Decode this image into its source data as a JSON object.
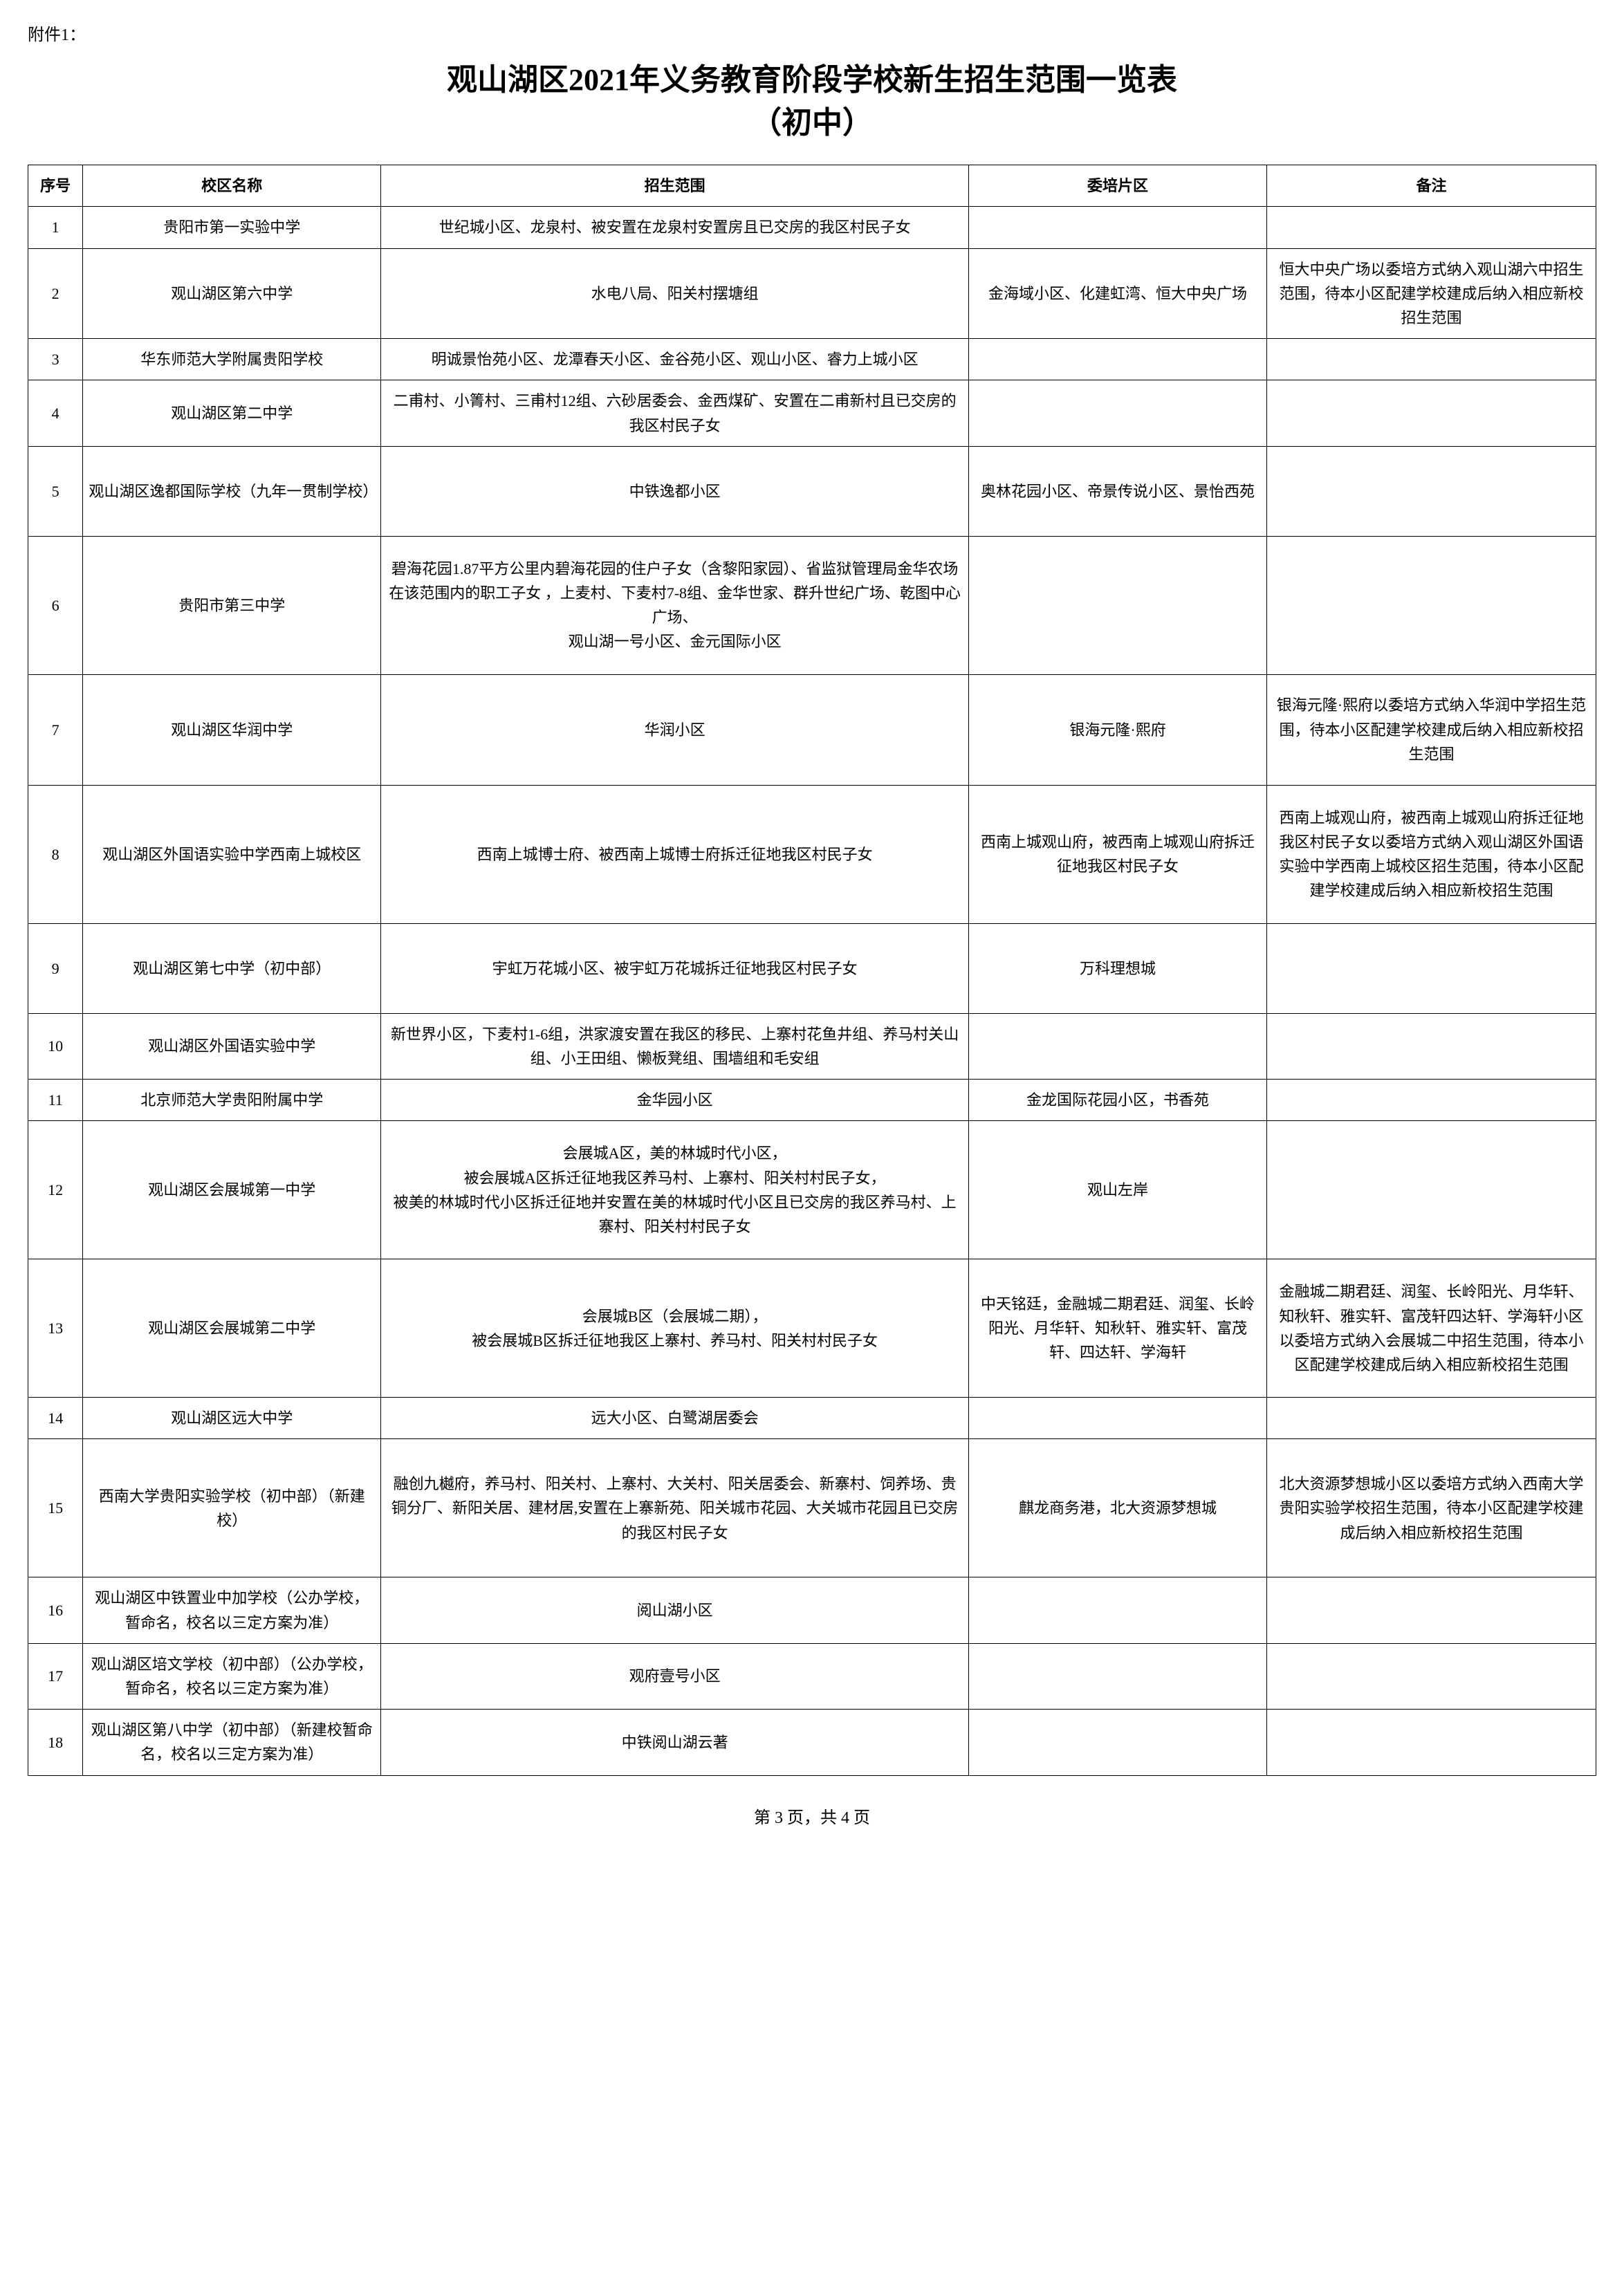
{
  "attachment_label": "附件1：",
  "title_line1": "观山湖区2021年义务教育阶段学校新生招生范围一览表",
  "title_line2": "（初中）",
  "headers": {
    "num": "序号",
    "school": "校区名称",
    "scope": "招生范围",
    "area": "委培片区",
    "note": "备注"
  },
  "rows": [
    {
      "num": "1",
      "school": "贵阳市第一实验中学",
      "scope": "世纪城小区、龙泉村、被安置在龙泉村安置房且已交房的我区村民子女",
      "area": "",
      "note": ""
    },
    {
      "num": "2",
      "school": "观山湖区第六中学",
      "scope": "水电八局、阳关村摆塘组",
      "area": "金海域小区、化建虹湾、恒大中央广场",
      "note": "恒大中央广场以委培方式纳入观山湖六中招生范围，待本小区配建学校建成后纳入相应新校招生范围"
    },
    {
      "num": "3",
      "school": "华东师范大学附属贵阳学校",
      "scope": "明诚景怡苑小区、龙潭春天小区、金谷苑小区、观山小区、睿力上城小区",
      "area": "",
      "note": ""
    },
    {
      "num": "4",
      "school": "观山湖区第二中学",
      "scope": "二甫村、小箐村、三甫村12组、六砂居委会、金西煤矿、安置在二甫新村且已交房的我区村民子女",
      "area": "",
      "note": ""
    },
    {
      "num": "5",
      "school": "观山湖区逸都国际学校（九年一贯制学校）",
      "scope": "中铁逸都小区",
      "area": "奥林花园小区、帝景传说小区、景怡西苑",
      "note": ""
    },
    {
      "num": "6",
      "school": "贵阳市第三中学",
      "scope": "碧海花园1.87平方公里内碧海花园的住户子女（含黎阳家园）、省监狱管理局金华农场在该范围内的职工子女 ，上麦村、下麦村7-8组、金华世家、群升世纪广场、乾图中心广场、\n观山湖一号小区、金元国际小区",
      "area": "",
      "note": ""
    },
    {
      "num": "7",
      "school": "观山湖区华润中学",
      "scope": "华润小区",
      "area": "银海元隆·熙府",
      "note": "银海元隆·熙府以委培方式纳入华润中学招生范围，待本小区配建学校建成后纳入相应新校招生范围"
    },
    {
      "num": "8",
      "school": "观山湖区外国语实验中学西南上城校区",
      "scope": "西南上城博士府、被西南上城博士府拆迁征地我区村民子女",
      "area": "西南上城观山府，被西南上城观山府拆迁征地我区村民子女",
      "note": "西南上城观山府，被西南上城观山府拆迁征地我区村民子女以委培方式纳入观山湖区外国语实验中学西南上城校区招生范围，待本小区配建学校建成后纳入相应新校招生范围"
    },
    {
      "num": "9",
      "school": "观山湖区第七中学（初中部）",
      "scope": "宇虹万花城小区、被宇虹万花城拆迁征地我区村民子女",
      "area": "万科理想城",
      "note": ""
    },
    {
      "num": "10",
      "school": "观山湖区外国语实验中学",
      "scope": "新世界小区，下麦村1-6组，洪家渡安置在我区的移民、上寨村花鱼井组、养马村关山组、小王田组、懒板凳组、围墙组和毛安组",
      "area": "",
      "note": ""
    },
    {
      "num": "11",
      "school": "北京师范大学贵阳附属中学",
      "scope": "金华园小区",
      "area": "金龙国际花园小区，书香苑",
      "note": ""
    },
    {
      "num": "12",
      "school": "观山湖区会展城第一中学",
      "scope": "会展城A区，美的林城时代小区，\n被会展城A区拆迁征地我区养马村、上寨村、阳关村村民子女，\n被美的林城时代小区拆迁征地并安置在美的林城时代小区且已交房的我区养马村、上寨村、阳关村村民子女",
      "area": "观山左岸",
      "note": ""
    },
    {
      "num": "13",
      "school": "观山湖区会展城第二中学",
      "scope": "会展城B区（会展城二期），\n被会展城B区拆迁征地我区上寨村、养马村、阳关村村民子女",
      "area": "中天铭廷，金融城二期君廷、润玺、长岭阳光、月华轩、知秋轩、雅实轩、富茂轩、四达轩、学海轩",
      "note": "金融城二期君廷、润玺、长岭阳光、月华轩、知秋轩、雅实轩、富茂轩四达轩、学海轩小区以委培方式纳入会展城二中招生范围，待本小区配建学校建成后纳入相应新校招生范围"
    },
    {
      "num": "14",
      "school": "观山湖区远大中学",
      "scope": "远大小区、白鹭湖居委会",
      "area": "",
      "note": ""
    },
    {
      "num": "15",
      "school": "西南大学贵阳实验学校（初中部）（新建校）",
      "scope": "融创九樾府，养马村、阳关村、上寨村、大关村、阳关居委会、新寨村、饲养场、贵铜分厂、新阳关居、建材居,安置在上寨新苑、阳关城市花园、大关城市花园且已交房的我区村民子女",
      "area": "麒龙商务港，北大资源梦想城",
      "note": "北大资源梦想城小区以委培方式纳入西南大学贵阳实验学校招生范围，待本小区配建学校建成后纳入相应新校招生范围"
    },
    {
      "num": "16",
      "school": "观山湖区中铁置业中加学校（公办学校，暂命名，校名以三定方案为准）",
      "scope": "阅山湖小区",
      "area": "",
      "note": ""
    },
    {
      "num": "17",
      "school": "观山湖区培文学校（初中部）（公办学校，暂命名，校名以三定方案为准）",
      "scope": "观府壹号小区",
      "area": "",
      "note": ""
    },
    {
      "num": "18",
      "school": "观山湖区第八中学（初中部）（新建校暂命名，校名以三定方案为准）",
      "scope": "中铁阅山湖云著",
      "area": "",
      "note": ""
    }
  ],
  "footer": "第 3 页，共 4 页"
}
